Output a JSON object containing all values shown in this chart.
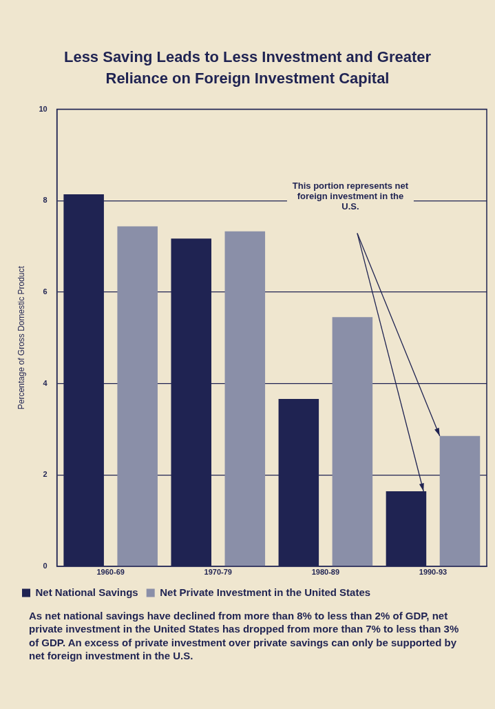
{
  "chart_data": {
    "type": "bar",
    "title": "Less Saving Leads to Less Investment and Greater Reliance on Foreign Investment Capital",
    "ylabel": "Percentage of Gross Domestic Product",
    "categories": [
      "1960-69",
      "1970-79",
      "1980-89",
      "1990-93"
    ],
    "series": [
      {
        "name": "Net National Savings",
        "color": "#1f2352",
        "values": [
          8.14,
          7.17,
          3.66,
          1.64
        ]
      },
      {
        "name": "Net Private Investment in the United States",
        "color": "#8a8fa8",
        "values": [
          7.44,
          7.33,
          5.45,
          2.85
        ]
      }
    ],
    "ylim": [
      0,
      10
    ],
    "yticks": [
      0,
      2,
      4,
      6,
      8,
      10
    ],
    "grid": "y",
    "legend": "bottom",
    "annotations": [
      "This portion represents net foreign investment in the U.S.",
      "As net national savings have declined from more than 8% to less than 2% of GDP, net private investment in the United States has dropped from more than 7% to less than 3% of GDP.  An excess of private investment over private savings can only be supported by net foreign investment in the U.S."
    ]
  }
}
